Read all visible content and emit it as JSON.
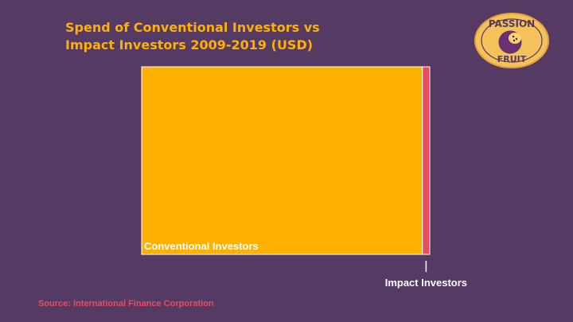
{
  "title": {
    "line1": "Spend of Conventional Investors vs",
    "line2": "Impact Investors 2009-2019 (USD)"
  },
  "chart_data": {
    "type": "treemap",
    "title": "Spend of Conventional Investors vs Impact Investors 2009-2019 (USD)",
    "unit": "USD",
    "series": [
      {
        "name": "Conventional Investors",
        "share": 0.9745,
        "color": "#ffb000"
      },
      {
        "name": "Impact Investors",
        "share": 0.0255,
        "color": "#e94b62"
      }
    ]
  },
  "source": "Source: International Finance Corporation",
  "logo": {
    "line1": "PASSION",
    "line2": "FRUIT"
  },
  "colors": {
    "background": "#553a63",
    "accent": "#ffb000",
    "secondary": "#e94b62"
  }
}
